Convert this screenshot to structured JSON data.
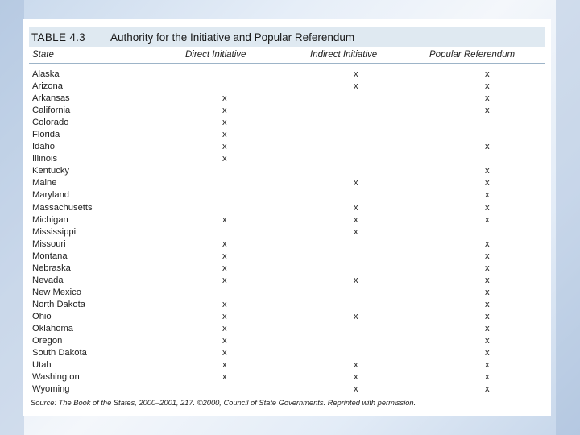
{
  "table": {
    "label": "TABLE 4.3",
    "title": "Authority for the Initiative and Popular Referendum",
    "headers": [
      "State",
      "Direct Initiative",
      "Indirect Initiative",
      "Popular Referendum"
    ],
    "rows": [
      {
        "state": "Alaska",
        "direct": "",
        "indirect": "x",
        "popular": "x"
      },
      {
        "state": "Arizona",
        "direct": "",
        "indirect": "x",
        "popular": "x"
      },
      {
        "state": "Arkansas",
        "direct": "x",
        "indirect": "",
        "popular": "x"
      },
      {
        "state": "California",
        "direct": "x",
        "indirect": "",
        "popular": "x"
      },
      {
        "state": "Colorado",
        "direct": "x",
        "indirect": "",
        "popular": ""
      },
      {
        "state": "Florida",
        "direct": "x",
        "indirect": "",
        "popular": ""
      },
      {
        "state": "Idaho",
        "direct": "x",
        "indirect": "",
        "popular": "x"
      },
      {
        "state": "Illinois",
        "direct": "x",
        "indirect": "",
        "popular": ""
      },
      {
        "state": "Kentucky",
        "direct": "",
        "indirect": "",
        "popular": "x"
      },
      {
        "state": "Maine",
        "direct": "",
        "indirect": "x",
        "popular": "x"
      },
      {
        "state": "Maryland",
        "direct": "",
        "indirect": "",
        "popular": "x"
      },
      {
        "state": "Massachusetts",
        "direct": "",
        "indirect": "x",
        "popular": "x"
      },
      {
        "state": "Michigan",
        "direct": "x",
        "indirect": "x",
        "popular": "x"
      },
      {
        "state": "Mississippi",
        "direct": "",
        "indirect": "x",
        "popular": ""
      },
      {
        "state": "Missouri",
        "direct": "x",
        "indirect": "",
        "popular": "x"
      },
      {
        "state": "Montana",
        "direct": "x",
        "indirect": "",
        "popular": "x"
      },
      {
        "state": "Nebraska",
        "direct": "x",
        "indirect": "",
        "popular": "x"
      },
      {
        "state": "Nevada",
        "direct": "x",
        "indirect": "x",
        "popular": "x"
      },
      {
        "state": "New Mexico",
        "direct": "",
        "indirect": "",
        "popular": "x"
      },
      {
        "state": "North Dakota",
        "direct": "x",
        "indirect": "",
        "popular": "x"
      },
      {
        "state": "Ohio",
        "direct": "x",
        "indirect": "x",
        "popular": "x"
      },
      {
        "state": "Oklahoma",
        "direct": "x",
        "indirect": "",
        "popular": "x"
      },
      {
        "state": "Oregon",
        "direct": "x",
        "indirect": "",
        "popular": "x"
      },
      {
        "state": "South Dakota",
        "direct": "x",
        "indirect": "",
        "popular": "x"
      },
      {
        "state": "Utah",
        "direct": "x",
        "indirect": "x",
        "popular": "x"
      },
      {
        "state": "Washington",
        "direct": "x",
        "indirect": "x",
        "popular": "x"
      },
      {
        "state": "Wyoming",
        "direct": "",
        "indirect": "x",
        "popular": "x"
      }
    ],
    "source_label": "Source:",
    "source_text": "The Book of the States, 2000–2001, 217. ©2000, Council of State Governments. Reprinted with permission."
  },
  "colors": {
    "title_bar": "#dfe9f1",
    "rule": "#9db4c8",
    "background": "#dbe6f3"
  }
}
